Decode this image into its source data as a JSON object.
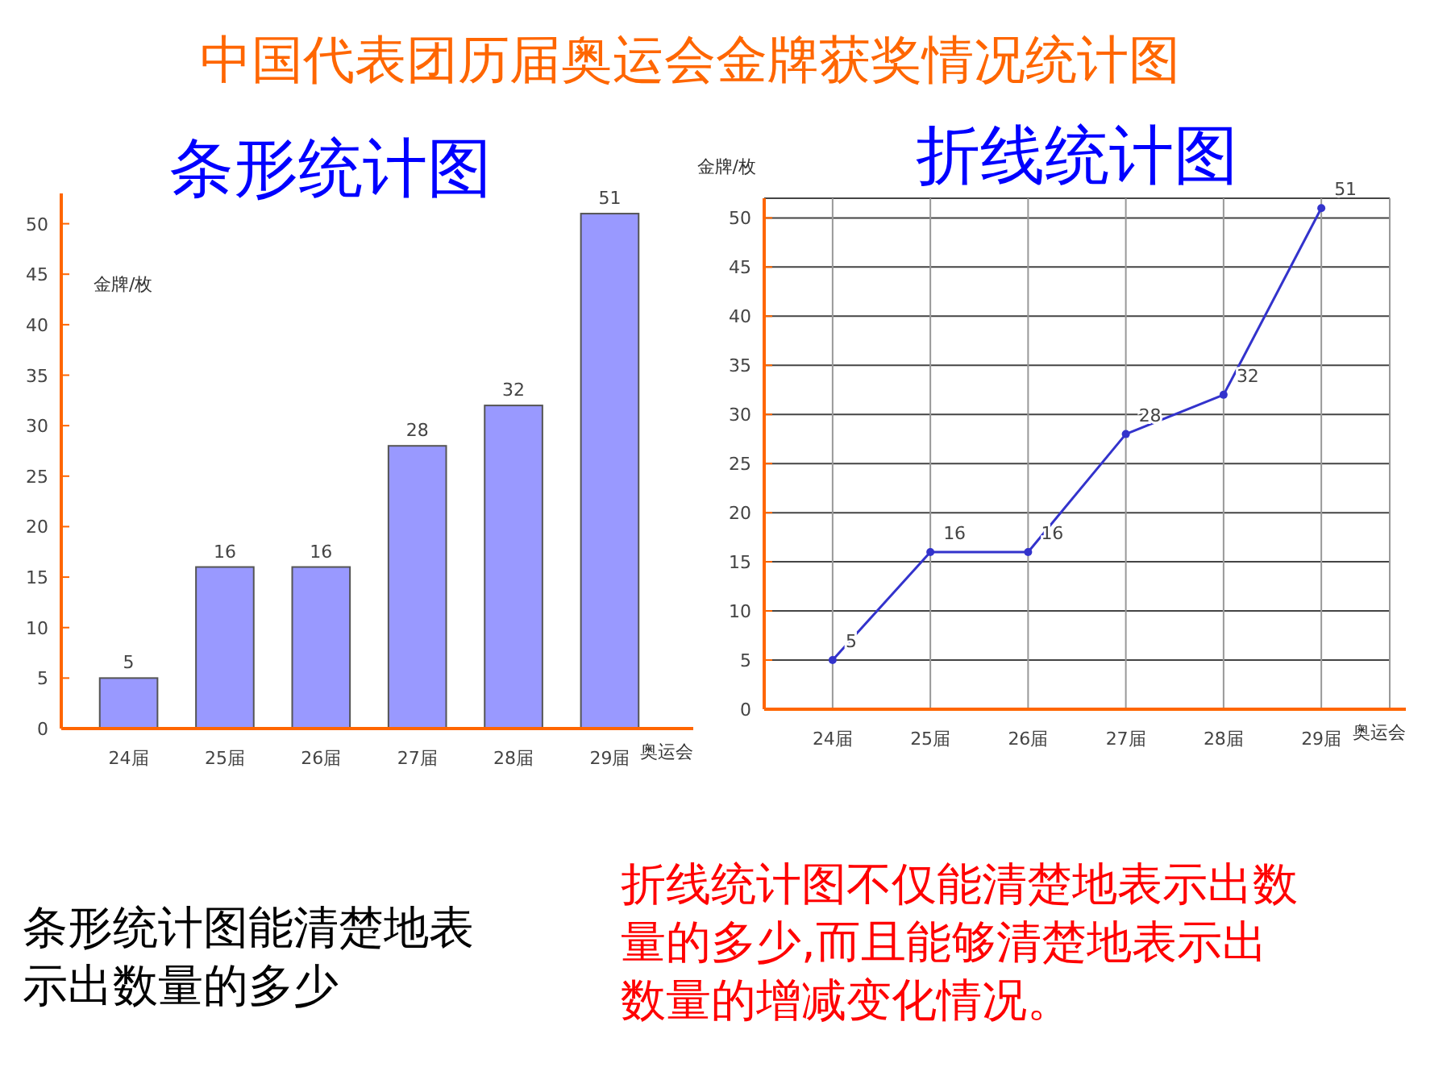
{
  "chart_data": [
    {
      "type": "bar",
      "title": "中国代表团历届奥运会金牌获奖情况统计图",
      "subtitle": "条形统计图",
      "xlabel": "奥运会",
      "ylabel": "金牌/枚",
      "categories": [
        "24届",
        "25届",
        "26届",
        "27届",
        "28届",
        "29届"
      ],
      "values": [
        5,
        16,
        16,
        28,
        32,
        51
      ],
      "color": "#9999ff",
      "ylim": [
        0,
        53
      ],
      "yticks": [
        0,
        5,
        10,
        15,
        20,
        25,
        30,
        35,
        40,
        45,
        50
      ],
      "data_labels": true,
      "grid": false,
      "annotations": [
        "条形统计图能清楚地表示出数量的多少"
      ]
    },
    {
      "type": "line",
      "title": "折线统计图",
      "xlabel": "奥运会",
      "ylabel": "金牌/枚",
      "categories": [
        "24届",
        "25届",
        "26届",
        "27届",
        "28届",
        "29届"
      ],
      "values": [
        5,
        16,
        16,
        28,
        32,
        51
      ],
      "color": "#3333cc",
      "marker": "circle",
      "line_style": "solid",
      "ylim": [
        0,
        52
      ],
      "yticks": [
        0,
        5,
        10,
        15,
        20,
        25,
        30,
        35,
        40,
        45,
        50
      ],
      "data_labels": true,
      "grid": true,
      "annotations": [
        "折线统计图不仅能清楚地表示出数量的多少,而且能够清楚地表示出数量的增减变化情况。"
      ]
    }
  ]
}
